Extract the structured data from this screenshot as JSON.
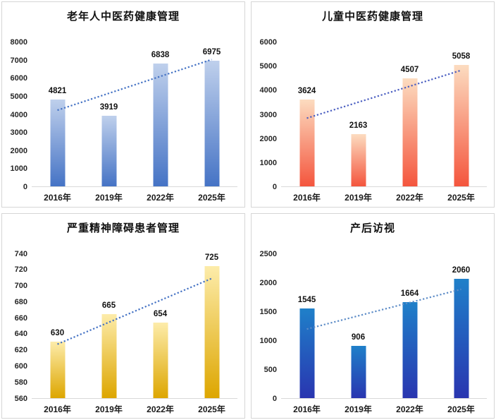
{
  "chart_data": [
    {
      "type": "bar",
      "title": "老年人中医药健康管理",
      "categories": [
        "2016年",
        "2019年",
        "2022年",
        "2025年"
      ],
      "values": [
        4821,
        3919,
        6838,
        6975
      ],
      "ylim": [
        0,
        8000
      ],
      "ytick_step": 1000,
      "grid": false,
      "legend": false,
      "data_labels": true,
      "bar_color_top": "#bfd0ec",
      "bar_color_bottom": "#4573c5",
      "trendline": {
        "type": "linear",
        "style": "dotted",
        "color": "#4472c4"
      }
    },
    {
      "type": "bar",
      "title": "儿童中医药健康管理",
      "categories": [
        "2016年",
        "2019年",
        "2022年",
        "2025年"
      ],
      "values": [
        3624,
        2163,
        4507,
        5058
      ],
      "ylim": [
        0,
        6000
      ],
      "ytick_step": 1000,
      "grid": false,
      "legend": false,
      "data_labels": true,
      "bar_color_top": "#fcdcc0",
      "bar_color_bottom": "#f4553d",
      "trendline": {
        "type": "linear",
        "style": "dotted",
        "color": "#4a5ec1"
      }
    },
    {
      "type": "bar",
      "title": "严重精神障碍患者管理",
      "categories": [
        "2016年",
        "2019年",
        "2022年",
        "2025年"
      ],
      "values": [
        630,
        665,
        654,
        725
      ],
      "ylim": [
        560,
        740
      ],
      "ytick_step": 20,
      "grid": false,
      "legend": false,
      "data_labels": true,
      "bar_color_top": "#fdecaa",
      "bar_color_bottom": "#dda600",
      "trendline": {
        "type": "linear",
        "style": "dotted",
        "color": "#4472c4"
      }
    },
    {
      "type": "bar",
      "title": "产后访视",
      "categories": [
        "2016年",
        "2019年",
        "2022年",
        "2025年"
      ],
      "values": [
        1545,
        906,
        1664,
        2060
      ],
      "ylim": [
        0,
        2500
      ],
      "ytick_step": 500,
      "grid": false,
      "legend": false,
      "data_labels": true,
      "bar_color_top": "#1f80c9",
      "bar_color_bottom": "#2935b0",
      "trendline": {
        "type": "linear",
        "style": "dotted",
        "color": "#5d8cc7"
      }
    }
  ]
}
